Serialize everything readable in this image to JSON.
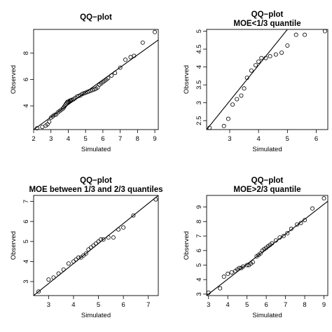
{
  "chart_data": [
    {
      "type": "scatter",
      "title": "QQ−plot",
      "subtitle": "",
      "xlabel": "Simulated",
      "ylabel": "Observed",
      "xlim": [
        2,
        9.2
      ],
      "ylim": [
        2.2,
        9.8
      ],
      "xticks": [
        2,
        3,
        4,
        5,
        6,
        7,
        8,
        9
      ],
      "yticks": [
        4,
        6,
        8
      ],
      "grid": false,
      "line": {
        "x": [
          2,
          9.2
        ],
        "y": [
          2.2,
          9.0
        ]
      },
      "x": [
        2.2,
        2.5,
        2.7,
        2.8,
        2.9,
        3.0,
        3.1,
        3.2,
        3.3,
        3.4,
        3.5,
        3.6,
        3.7,
        3.75,
        3.8,
        3.85,
        3.9,
        3.95,
        4.0,
        4.05,
        4.1,
        4.15,
        4.2,
        4.3,
        4.4,
        4.5,
        4.6,
        4.7,
        4.8,
        4.9,
        5.0,
        5.1,
        5.2,
        5.3,
        5.4,
        5.5,
        5.6,
        5.7,
        5.8,
        5.9,
        6.0,
        6.1,
        6.2,
        6.3,
        6.5,
        6.7,
        7.0,
        7.3,
        7.6,
        7.8,
        8.3,
        9.0
      ],
      "y": [
        2.3,
        2.4,
        2.5,
        2.6,
        2.8,
        3.1,
        3.2,
        3.3,
        3.35,
        3.5,
        3.6,
        3.7,
        3.8,
        3.9,
        4.0,
        4.1,
        4.2,
        4.3,
        4.3,
        4.35,
        4.4,
        4.4,
        4.45,
        4.5,
        4.6,
        4.7,
        4.75,
        4.8,
        4.9,
        4.95,
        5.0,
        5.05,
        5.1,
        5.15,
        5.2,
        5.25,
        5.3,
        5.4,
        5.6,
        5.7,
        5.8,
        5.9,
        6.0,
        6.1,
        6.3,
        6.5,
        6.9,
        7.5,
        7.7,
        7.8,
        8.8,
        9.6
      ]
    },
    {
      "type": "scatter",
      "title": "QQ−plot",
      "subtitle": "MOE<1/3 quantile",
      "xlabel": "Simulated",
      "ylabel": "Observed",
      "xlim": [
        2.2,
        6.4
      ],
      "ylim": [
        2.25,
        5.05
      ],
      "xticks": [
        3,
        4,
        5,
        6
      ],
      "yticks": [
        2.5,
        3.0,
        3.5,
        4.0,
        4.5,
        5.0
      ],
      "grid": false,
      "line": {
        "x": [
          2.2,
          5.0
        ],
        "y": [
          2.25,
          5.05
        ]
      },
      "x": [
        2.3,
        2.8,
        2.95,
        3.1,
        3.25,
        3.4,
        3.5,
        3.6,
        3.75,
        3.9,
        4.0,
        4.1,
        4.25,
        4.4,
        4.6,
        4.8,
        5.0,
        5.3,
        5.6,
        6.3
      ],
      "y": [
        2.3,
        2.35,
        2.55,
        2.95,
        3.1,
        3.2,
        3.4,
        3.7,
        3.9,
        4.05,
        4.15,
        4.25,
        4.25,
        4.3,
        4.35,
        4.4,
        4.6,
        4.9,
        4.9,
        5.0
      ]
    },
    {
      "type": "scatter",
      "title": "QQ−plot",
      "subtitle": "MOE between 1/3 and 2/3 quantiles",
      "xlabel": "Simulated",
      "ylabel": "Observed",
      "xlim": [
        2.4,
        7.4
      ],
      "ylim": [
        2.3,
        7.3
      ],
      "xticks": [
        3,
        4,
        5,
        6,
        7
      ],
      "yticks": [
        3,
        4,
        5,
        6,
        7
      ],
      "grid": false,
      "line": {
        "x": [
          2.4,
          7.4
        ],
        "y": [
          2.3,
          7.3
        ]
      },
      "x": [
        2.6,
        3.0,
        3.2,
        3.4,
        3.6,
        3.8,
        4.0,
        4.1,
        4.2,
        4.3,
        4.4,
        4.5,
        4.6,
        4.7,
        4.8,
        4.9,
        5.0,
        5.1,
        5.2,
        5.4,
        5.6,
        5.8,
        6.0,
        6.4,
        7.3
      ],
      "y": [
        2.5,
        3.1,
        3.2,
        3.4,
        3.6,
        3.9,
        4.0,
        4.1,
        4.2,
        4.2,
        4.3,
        4.4,
        4.6,
        4.7,
        4.8,
        4.9,
        5.0,
        5.1,
        5.1,
        5.2,
        5.2,
        5.6,
        5.7,
        6.3,
        7.1
      ]
    },
    {
      "type": "scatter",
      "title": "QQ−plot",
      "subtitle": "MOE>2/3 quantile",
      "xlabel": "Simulated",
      "ylabel": "Observed",
      "xlim": [
        2.9,
        9.2
      ],
      "ylim": [
        2.9,
        9.8
      ],
      "xticks": [
        3,
        4,
        5,
        6,
        7,
        8,
        9
      ],
      "yticks": [
        3,
        4,
        5,
        6,
        7,
        8,
        9
      ],
      "grid": false,
      "line": {
        "x": [
          2.9,
          9.2
        ],
        "y": [
          2.9,
          9.4
        ]
      },
      "x": [
        3.0,
        3.6,
        3.8,
        4.0,
        4.2,
        4.4,
        4.5,
        4.6,
        4.7,
        4.8,
        5.0,
        5.1,
        5.2,
        5.3,
        5.5,
        5.6,
        5.7,
        5.8,
        5.9,
        6.0,
        6.1,
        6.2,
        6.3,
        6.5,
        6.7,
        6.9,
        7.1,
        7.3,
        7.6,
        7.8,
        8.0,
        8.4,
        9.0
      ],
      "y": [
        3.1,
        3.4,
        4.2,
        4.4,
        4.5,
        4.6,
        4.7,
        4.8,
        4.8,
        4.9,
        5.0,
        5.0,
        5.1,
        5.2,
        5.6,
        5.7,
        5.8,
        6.0,
        6.1,
        6.2,
        6.3,
        6.4,
        6.5,
        6.7,
        6.9,
        7.0,
        7.2,
        7.5,
        7.8,
        7.9,
        8.1,
        8.9,
        9.6
      ]
    }
  ]
}
